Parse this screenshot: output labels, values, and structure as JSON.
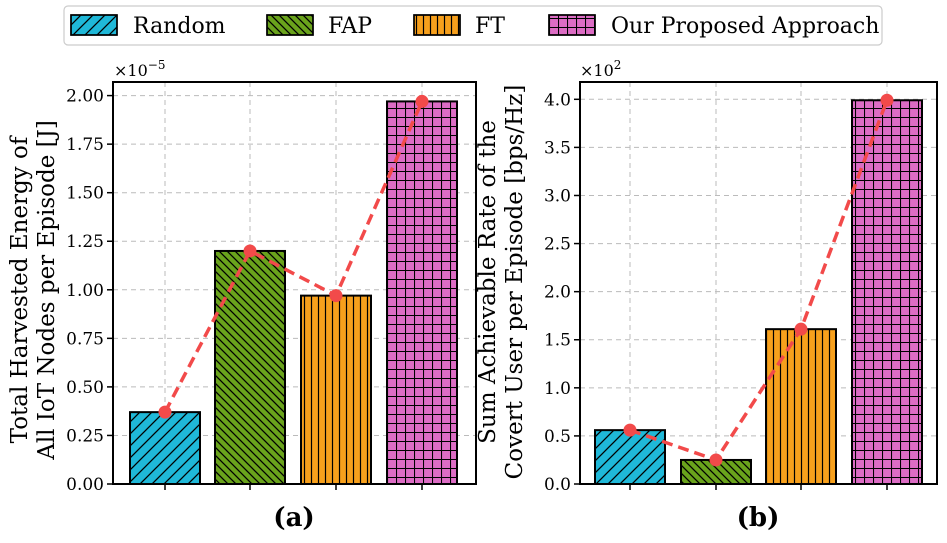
{
  "legend": {
    "items": [
      {
        "label": "Random",
        "color": "#1fb8d8",
        "hatch": "diag"
      },
      {
        "label": "FAP",
        "color": "#6aa31c",
        "hatch": "backdiag"
      },
      {
        "label": "FT",
        "color": "#f7a01c",
        "hatch": "vert"
      },
      {
        "label": "Our Proposed Approach",
        "color": "#dc6cc4",
        "hatch": "grid"
      }
    ]
  },
  "chart_data": [
    {
      "type": "bar",
      "panel_label": "(a)",
      "categories": [
        "Random",
        "FAP",
        "FT",
        "Our Proposed Approach"
      ],
      "values": [
        0.37,
        1.2,
        0.97,
        1.97
      ],
      "scale_label": "×10−5",
      "ylabel_lines": [
        "Total Harvested Energy of",
        "All IoT Nodes per Episode [J]"
      ],
      "ylim": [
        0,
        2.07
      ],
      "yticks": [
        0.0,
        0.25,
        0.5,
        0.75,
        1.0,
        1.25,
        1.5,
        1.75,
        2.0
      ],
      "ytick_labels": [
        "0.00",
        "0.25",
        "0.50",
        "0.75",
        "1.00",
        "1.25",
        "1.50",
        "1.75",
        "2.00"
      ],
      "trend_color": "#f24a4a",
      "grid": true
    },
    {
      "type": "bar",
      "panel_label": "(b)",
      "categories": [
        "Random",
        "FAP",
        "FT",
        "Our Proposed Approach"
      ],
      "values": [
        0.56,
        0.25,
        1.61,
        3.99
      ],
      "scale_label": "×102",
      "ylabel_lines": [
        "Sum Achievable Rate of the",
        "Covert User per Episode [bps/Hz]"
      ],
      "ylim": [
        0,
        4.18
      ],
      "yticks": [
        0.0,
        0.5,
        1.0,
        1.5,
        2.0,
        2.5,
        3.0,
        3.5,
        4.0
      ],
      "ytick_labels": [
        "0.0",
        "0.5",
        "1.0",
        "1.5",
        "2.0",
        "2.5",
        "3.0",
        "3.5",
        "4.0"
      ],
      "trend_color": "#f24a4a",
      "grid": true
    }
  ]
}
